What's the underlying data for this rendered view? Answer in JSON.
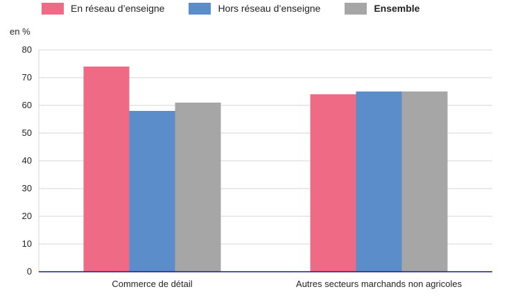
{
  "colors": {
    "series0": "#ee6a85",
    "series1": "#5a8dca",
    "series2": "#a6a6a6",
    "axis": "#1a1a8c",
    "grid": "#d4d4d4"
  },
  "chart_data": {
    "type": "bar",
    "title": "",
    "xlabel": "",
    "ylabel": "en %",
    "ylim": [
      0,
      80
    ],
    "yticks": [
      0,
      10,
      20,
      30,
      40,
      50,
      60,
      70,
      80
    ],
    "grid": true,
    "legend_position": "top",
    "categories": [
      "Commerce de détail",
      "Autres secteurs marchands non agricoles"
    ],
    "series": [
      {
        "name": "En réseau d’enseigne",
        "values": [
          74,
          64
        ]
      },
      {
        "name": "Hors réseau d’enseigne",
        "values": [
          58,
          65
        ]
      },
      {
        "name": "Ensemble",
        "values": [
          61,
          65
        ]
      }
    ]
  }
}
